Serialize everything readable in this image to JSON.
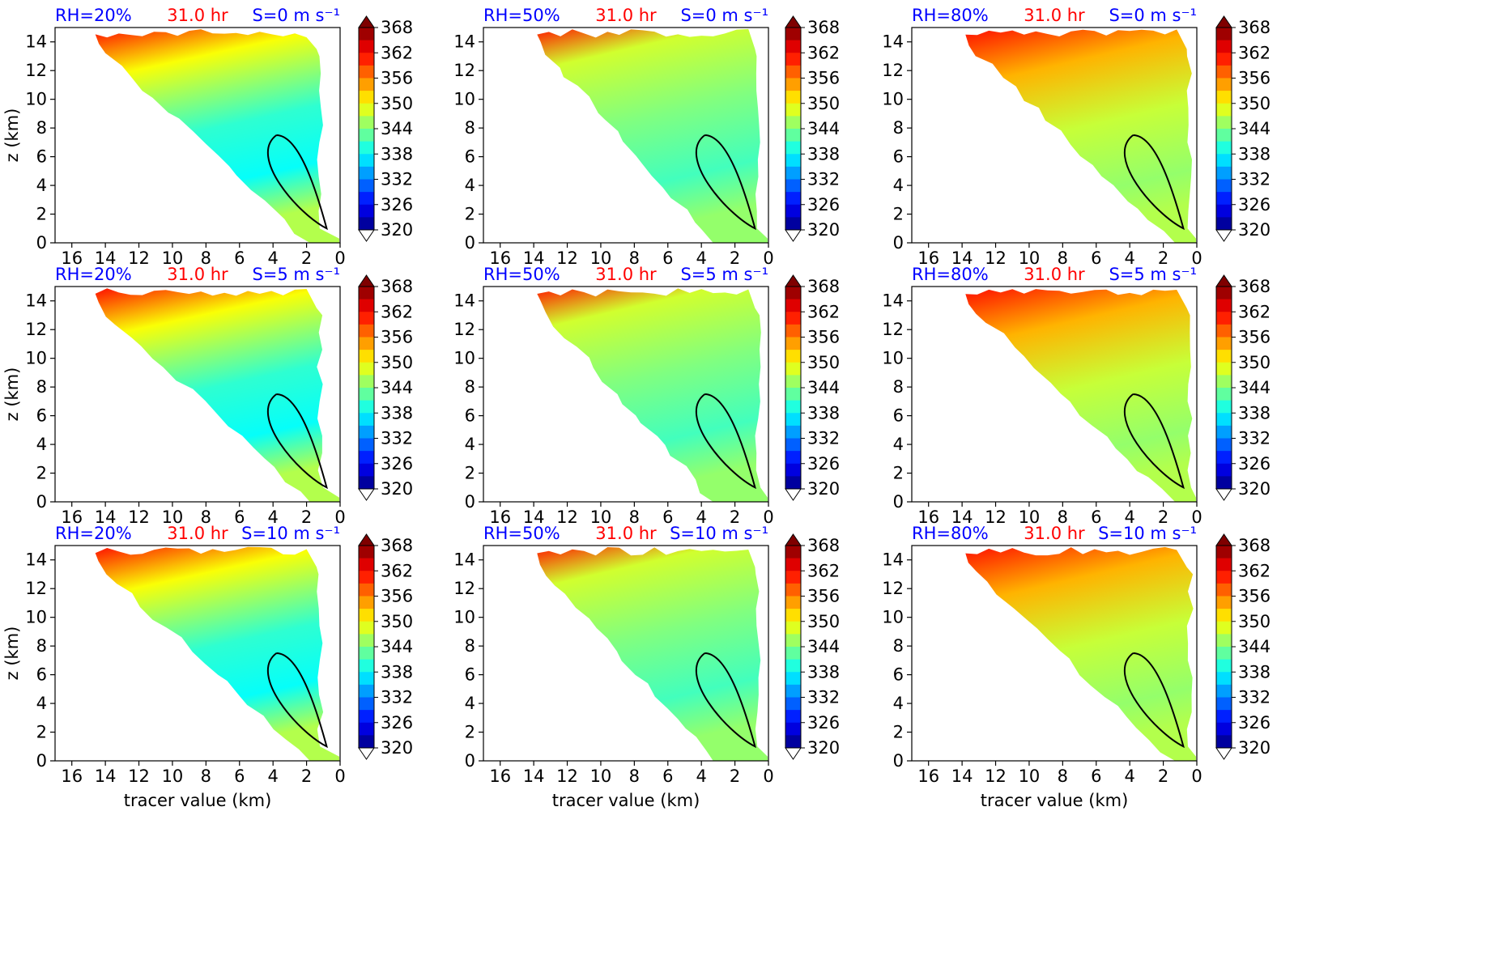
{
  "figure": {
    "ylabel": "z (km)",
    "xlabel": "tracer value (km)",
    "time_label": "31.0 hr",
    "colors": {
      "rh_label": "#0000ff",
      "time_label": "#ff0000",
      "shear_label": "#0000ff"
    }
  },
  "colorbar": {
    "ticks": [
      "368",
      "362",
      "356",
      "350",
      "344",
      "338",
      "332",
      "326",
      "320"
    ],
    "range": [
      320,
      368
    ],
    "extend": "both",
    "colormap": "jet"
  },
  "axes": {
    "x_ticks": [
      "16",
      "14",
      "12",
      "10",
      "8",
      "6",
      "4",
      "2",
      "0"
    ],
    "y_ticks": [
      "0",
      "2",
      "4",
      "6",
      "8",
      "10",
      "12",
      "14"
    ],
    "xlim": [
      17,
      0
    ],
    "ylim": [
      0,
      15
    ]
  },
  "chart_data": [
    {
      "type": "heatmap",
      "row": 0,
      "col": 0,
      "rh": "RH=20%",
      "time": "31.0 hr",
      "shear": "S=0 m s⁻¹",
      "rh_pct": 20,
      "shear_ms": 0,
      "xlabel": "",
      "ylabel": "z (km)",
      "xlim": [
        17,
        0
      ],
      "ylim": [
        0,
        15
      ],
      "clim": [
        320,
        368
      ]
    },
    {
      "type": "heatmap",
      "row": 0,
      "col": 1,
      "rh": "RH=50%",
      "time": "31.0 hr",
      "shear": "S=0 m s⁻¹",
      "rh_pct": 50,
      "shear_ms": 0,
      "xlabel": "",
      "ylabel": "",
      "xlim": [
        17,
        0
      ],
      "ylim": [
        0,
        15
      ],
      "clim": [
        320,
        368
      ]
    },
    {
      "type": "heatmap",
      "row": 0,
      "col": 2,
      "rh": "RH=80%",
      "time": "31.0 hr",
      "shear": "S=0 m s⁻¹",
      "rh_pct": 80,
      "shear_ms": 0,
      "xlabel": "",
      "ylabel": "",
      "xlim": [
        17,
        0
      ],
      "ylim": [
        0,
        15
      ],
      "clim": [
        320,
        368
      ]
    },
    {
      "type": "heatmap",
      "row": 1,
      "col": 0,
      "rh": "RH=20%",
      "time": "31.0 hr",
      "shear": "S=5 m s⁻¹",
      "rh_pct": 20,
      "shear_ms": 5,
      "xlabel": "",
      "ylabel": "z (km)",
      "xlim": [
        17,
        0
      ],
      "ylim": [
        0,
        15
      ],
      "clim": [
        320,
        368
      ]
    },
    {
      "type": "heatmap",
      "row": 1,
      "col": 1,
      "rh": "RH=50%",
      "time": "31.0 hr",
      "shear": "S=5 m s⁻¹",
      "rh_pct": 50,
      "shear_ms": 5,
      "xlabel": "",
      "ylabel": "",
      "xlim": [
        17,
        0
      ],
      "ylim": [
        0,
        15
      ],
      "clim": [
        320,
        368
      ]
    },
    {
      "type": "heatmap",
      "row": 1,
      "col": 2,
      "rh": "RH=80%",
      "time": "31.0 hr",
      "shear": "S=5 m s⁻¹",
      "rh_pct": 80,
      "shear_ms": 5,
      "xlabel": "",
      "ylabel": "",
      "xlim": [
        17,
        0
      ],
      "ylim": [
        0,
        15
      ],
      "clim": [
        320,
        368
      ]
    },
    {
      "type": "heatmap",
      "row": 2,
      "col": 0,
      "rh": "RH=20%",
      "time": "31.0 hr",
      "shear": "S=10 m s⁻¹",
      "rh_pct": 20,
      "shear_ms": 10,
      "xlabel": "tracer value (km)",
      "ylabel": "z (km)",
      "xlim": [
        17,
        0
      ],
      "ylim": [
        0,
        15
      ],
      "clim": [
        320,
        368
      ]
    },
    {
      "type": "heatmap",
      "row": 2,
      "col": 1,
      "rh": "RH=50%",
      "time": "31.0 hr",
      "shear": "S=10 m s⁻¹",
      "rh_pct": 50,
      "shear_ms": 10,
      "xlabel": "tracer value (km)",
      "ylabel": "",
      "xlim": [
        17,
        0
      ],
      "ylim": [
        0,
        15
      ],
      "clim": [
        320,
        368
      ]
    },
    {
      "type": "heatmap",
      "row": 2,
      "col": 2,
      "rh": "RH=80%",
      "time": "31.0 hr",
      "shear": "S=10 m s⁻¹",
      "rh_pct": 80,
      "shear_ms": 10,
      "xlabel": "tracer value (km)",
      "ylabel": "",
      "xlim": [
        17,
        0
      ],
      "ylim": [
        0,
        15
      ],
      "clim": [
        320,
        368
      ]
    }
  ]
}
